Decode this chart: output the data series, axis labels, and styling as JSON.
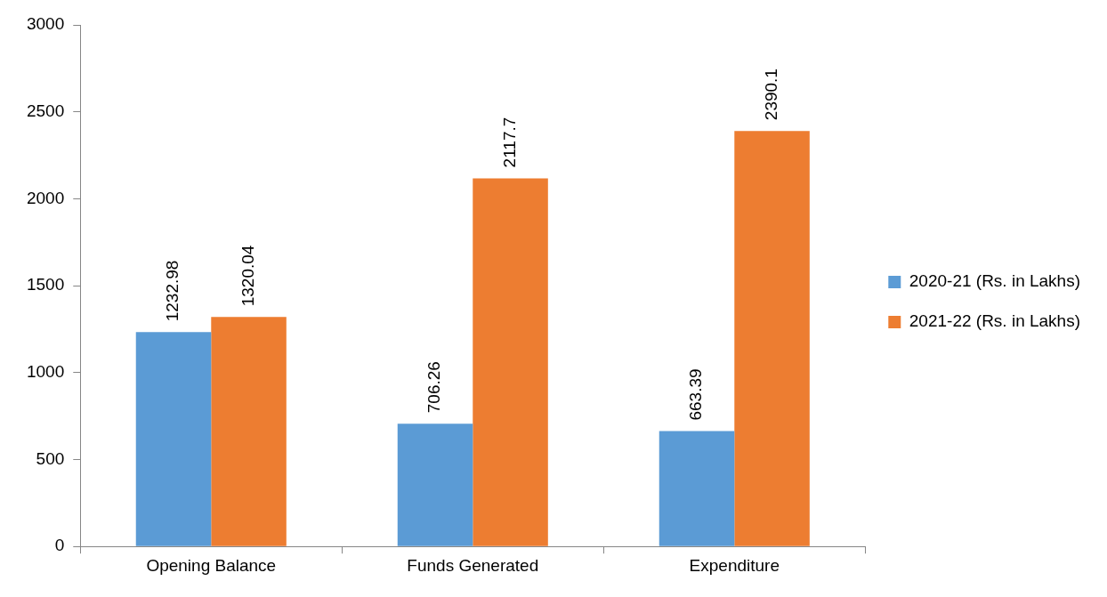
{
  "chart_data": {
    "type": "bar",
    "categories": [
      "Opening Balance",
      "Funds Generated",
      "Expenditure"
    ],
    "series": [
      {
        "name": "2020-21 (Rs. in Lakhs)",
        "color": "#5b9bd5",
        "values": [
          1232.98,
          706.26,
          663.39
        ]
      },
      {
        "name": "2021-22 (Rs. in Lakhs)",
        "color": "#ed7d31",
        "values": [
          1320.04,
          2117.7,
          2390.1
        ]
      }
    ],
    "ylim": [
      0,
      3000
    ],
    "yticks": [
      0,
      500,
      1000,
      1500,
      2000,
      2500,
      3000
    ],
    "grid": false,
    "legend": "right",
    "data_labels": true
  }
}
